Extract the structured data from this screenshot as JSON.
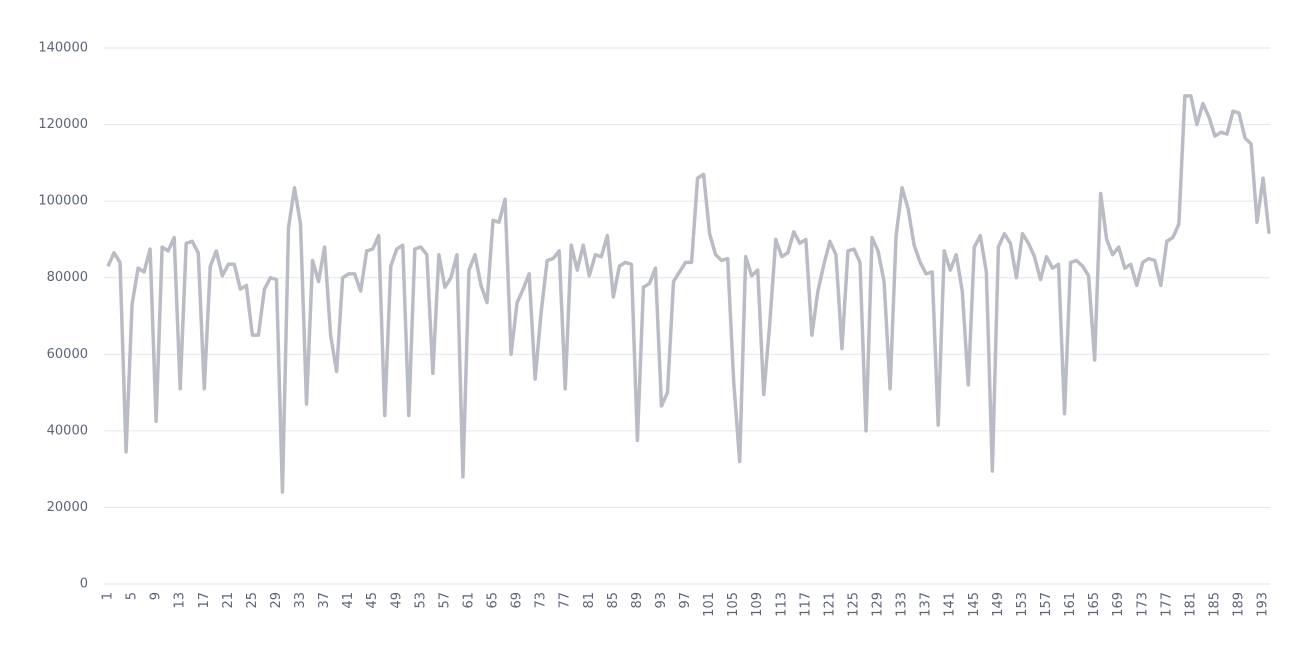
{
  "chart_data": {
    "type": "line",
    "categories": [
      1,
      null,
      null,
      null,
      5,
      null,
      null,
      null,
      9,
      null,
      null,
      null,
      13,
      null,
      null,
      null,
      17,
      null,
      null,
      null,
      21,
      null,
      null,
      null,
      25,
      null,
      null,
      null,
      29,
      null,
      null,
      null,
      33,
      null,
      null,
      null,
      37,
      null,
      null,
      null,
      41,
      null,
      null,
      null,
      45,
      null,
      null,
      null,
      49,
      null,
      null,
      null,
      53,
      null,
      null,
      null,
      57,
      null,
      null,
      null,
      61,
      null,
      null,
      null,
      65,
      null,
      null,
      null,
      69,
      null,
      null,
      null,
      73,
      null,
      null,
      null,
      77,
      null,
      null,
      null,
      81,
      null,
      null,
      null,
      85,
      null,
      null,
      null,
      89,
      null,
      null,
      null,
      93,
      null,
      null,
      null,
      97,
      null,
      null,
      null,
      101,
      null,
      null,
      null,
      105,
      null,
      null,
      null,
      109,
      null,
      null,
      null,
      113,
      null,
      null,
      null,
      117,
      null,
      null,
      null,
      121,
      null,
      null,
      null,
      125,
      null,
      null,
      null,
      129,
      null,
      null,
      null,
      133,
      null,
      null,
      null,
      137,
      null,
      null,
      null,
      141,
      null,
      null,
      null,
      145,
      null,
      null,
      null,
      149,
      null,
      null,
      null,
      153,
      null,
      null,
      null,
      157,
      null,
      null,
      null,
      161,
      null,
      null,
      null,
      165,
      null,
      null,
      null,
      169,
      null,
      null,
      null,
      173,
      null,
      null,
      null,
      177,
      null,
      null,
      null,
      181,
      null,
      null,
      null,
      185,
      null,
      null,
      null,
      189,
      null,
      null,
      null,
      193,
      null
    ],
    "series": [
      {
        "color": "#b9bcc4",
        "values": [
          83000,
          86500,
          84000,
          34500,
          73000,
          82500,
          81500,
          87500,
          42500,
          88000,
          87000,
          90500,
          51000,
          89000,
          89500,
          86500,
          51000,
          83000,
          87000,
          80500,
          83500,
          83500,
          77000,
          78000,
          65000,
          65000,
          77000,
          80000,
          79500,
          24000,
          93000,
          103500,
          94000,
          47000,
          84500,
          79000,
          88000,
          65000,
          55500,
          80000,
          81000,
          81000,
          76500,
          87000,
          87500,
          91000,
          44000,
          83000,
          87500,
          88500,
          44000,
          87500,
          88000,
          86000,
          55000,
          86000,
          77500,
          80000,
          86000,
          28000,
          82000,
          86000,
          78000,
          73500,
          95000,
          94500,
          100500,
          60000,
          73500,
          77000,
          81000,
          53500,
          71000,
          84500,
          85000,
          87000,
          51000,
          88500,
          82000,
          88500,
          80500,
          86000,
          85500,
          91000,
          75000,
          83000,
          84000,
          83500,
          37500,
          77500,
          78500,
          82500,
          46500,
          50000,
          79000,
          81500,
          84000,
          84000,
          106000,
          107000,
          91500,
          86000,
          84500,
          85000,
          53000,
          32000,
          85500,
          80500,
          82000,
          49500,
          68000,
          90000,
          85500,
          86500,
          92000,
          89000,
          90000,
          65000,
          76500,
          83500,
          89500,
          86000,
          61500,
          87000,
          87500,
          84000,
          40000,
          90500,
          87000,
          79000,
          51000,
          91000,
          103500,
          98000,
          88500,
          84000,
          81000,
          81500,
          41500,
          87000,
          82000,
          86000,
          76500,
          52000,
          88000,
          91000,
          81500,
          29500,
          88000,
          91500,
          89000,
          80000,
          91500,
          89000,
          85500,
          79500,
          85500,
          82500,
          83500,
          44500,
          84000,
          84500,
          83000,
          80500,
          58500,
          102000,
          90000,
          86000,
          88000,
          82500,
          83500,
          78000,
          84000,
          85000,
          84500,
          78000,
          89500,
          90500,
          94000,
          127500,
          127500,
          120000,
          125500,
          122000,
          117000,
          118000,
          117500,
          123500,
          123000,
          116500,
          115000,
          94500,
          106000,
          91500
        ]
      }
    ],
    "ylim": [
      0,
      140000
    ],
    "yticks": [
      0,
      20000,
      40000,
      60000,
      80000,
      100000,
      120000,
      140000
    ],
    "grid": true
  }
}
